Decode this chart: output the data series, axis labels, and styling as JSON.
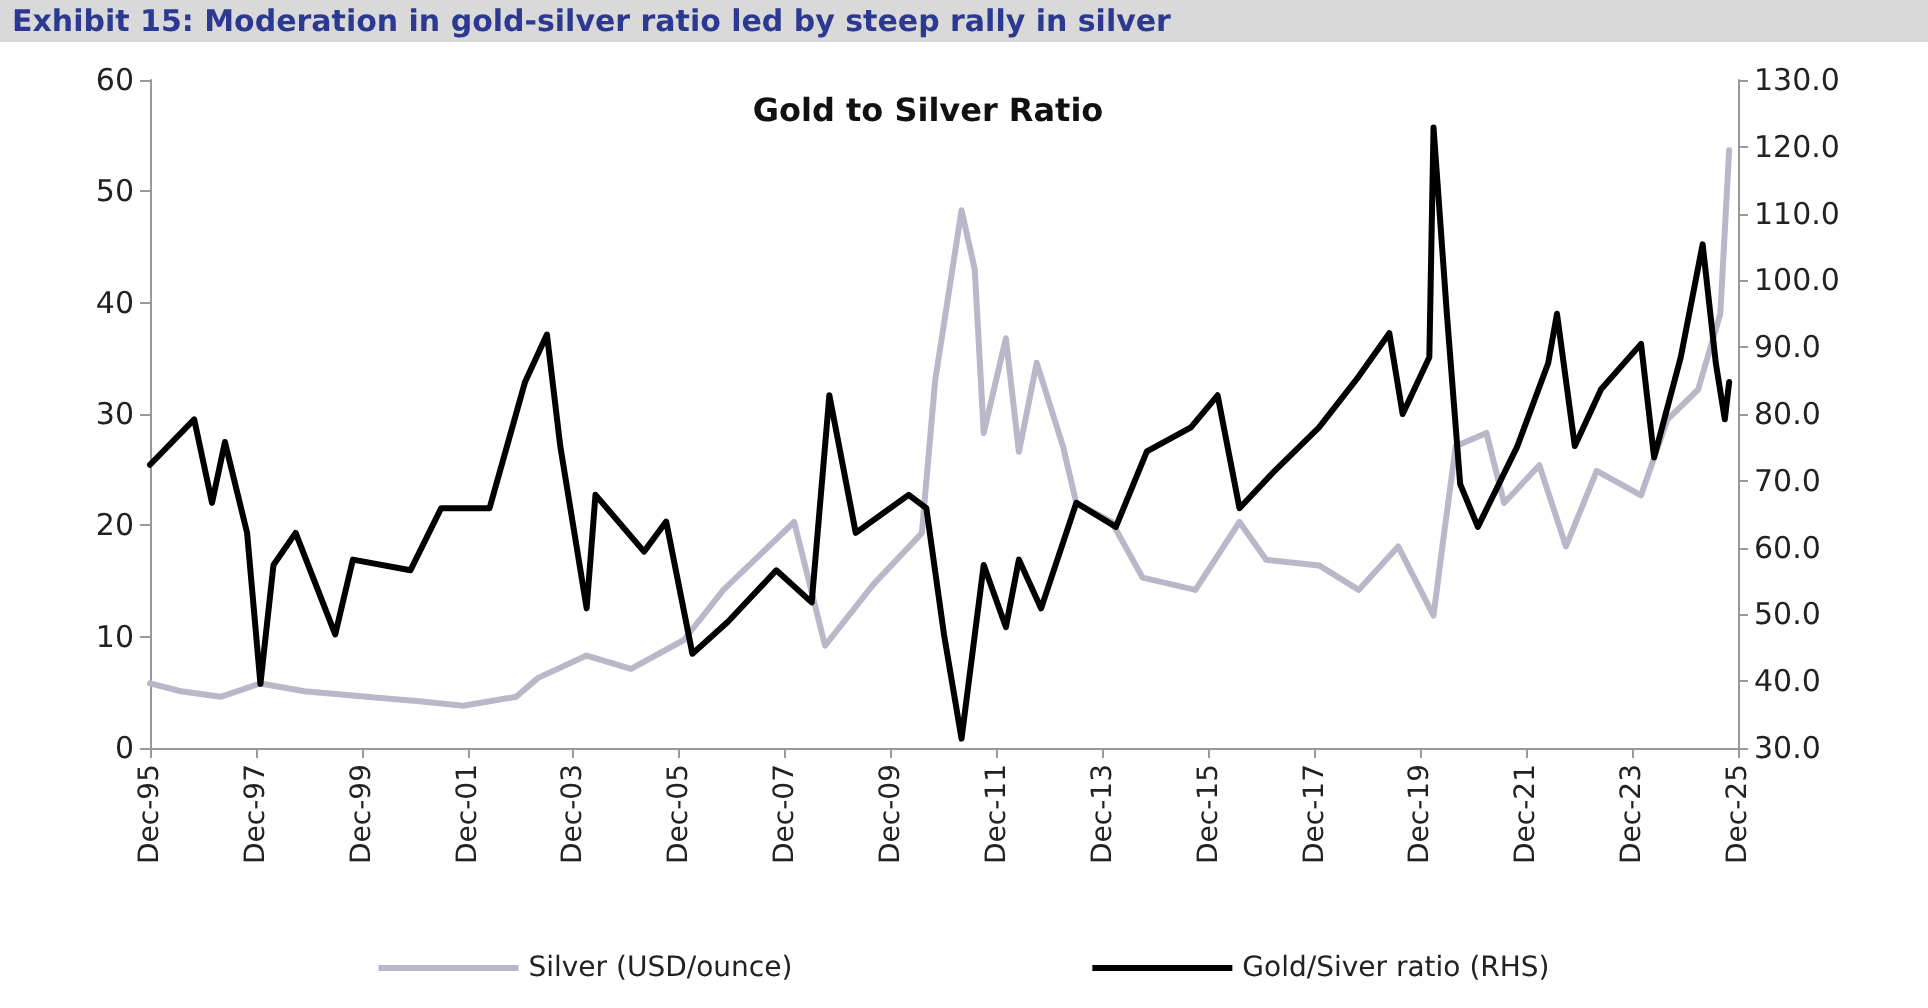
{
  "chart_data": {
    "type": "line",
    "title": "Exhibit 15: Moderation in gold-silver ratio led by steep rally in silver",
    "subtitle": "Gold to Silver Ratio",
    "xlim": [
      "1995-12",
      "2025-12"
    ],
    "xticks": [
      {
        "value": "1995-12",
        "label": "Dec-95"
      },
      {
        "value": "1997-12",
        "label": "Dec-97"
      },
      {
        "value": "1999-12",
        "label": "Dec-99"
      },
      {
        "value": "2001-12",
        "label": "Dec-01"
      },
      {
        "value": "2003-12",
        "label": "Dec-03"
      },
      {
        "value": "2005-12",
        "label": "Dec-05"
      },
      {
        "value": "2007-12",
        "label": "Dec-07"
      },
      {
        "value": "2009-12",
        "label": "Dec-09"
      },
      {
        "value": "2011-12",
        "label": "Dec-11"
      },
      {
        "value": "2013-12",
        "label": "Dec-13"
      },
      {
        "value": "2015-12",
        "label": "Dec-15"
      },
      {
        "value": "2017-12",
        "label": "Dec-17"
      },
      {
        "value": "2019-12",
        "label": "Dec-19"
      },
      {
        "value": "2021-12",
        "label": "Dec-21"
      },
      {
        "value": "2023-12",
        "label": "Dec-23"
      },
      {
        "value": "2025-12",
        "label": "Dec-25"
      }
    ],
    "ylim": [
      0,
      60
    ],
    "yticks": [
      0,
      10,
      20,
      30,
      40,
      50,
      60
    ],
    "y2lim": [
      30,
      130
    ],
    "y2ticks": [
      {
        "value": 30,
        "label": "30.0"
      },
      {
        "value": 40,
        "label": "40.0"
      },
      {
        "value": 50,
        "label": "50.0"
      },
      {
        "value": 60,
        "label": "60.0"
      },
      {
        "value": 70,
        "label": "70.0"
      },
      {
        "value": 80,
        "label": "80.0"
      },
      {
        "value": 90,
        "label": "90.0"
      },
      {
        "value": 100,
        "label": "100.0"
      },
      {
        "value": 110,
        "label": "110.0"
      },
      {
        "value": 120,
        "label": "120.0"
      },
      {
        "value": 130,
        "label": "130.0"
      }
    ],
    "grid": false,
    "legend": "bottom",
    "marker": "none",
    "line_style": "solid",
    "series": [
      {
        "name": "Silver (USD/ounce)",
        "color": "#b9b8c8",
        "x": [
          "1995-12",
          "1996-07",
          "1997-04",
          "1998-01",
          "1998-11",
          "2000-01",
          "2001-01",
          "2001-11",
          "2002-11",
          "2003-04",
          "2004-03",
          "2005-01",
          "2006-01",
          "2006-10",
          "2008-02",
          "2008-09",
          "2009-08",
          "2010-07",
          "2010-10",
          "2011-04",
          "2011-07",
          "2011-09",
          "2012-02",
          "2012-05",
          "2012-09",
          "2013-03",
          "2013-06",
          "2014-02",
          "2014-09",
          "2015-09",
          "2016-07",
          "2017-01",
          "2018-01",
          "2018-10",
          "2019-07",
          "2020-03",
          "2020-05",
          "2020-08",
          "2021-03",
          "2021-07",
          "2022-03",
          "2022-09",
          "2023-04",
          "2024-02",
          "2024-08",
          "2025-03",
          "2025-08",
          "2025-10"
        ],
        "values": [
          5.8,
          5.1,
          4.6,
          5.8,
          5.1,
          4.6,
          4.2,
          3.8,
          4.6,
          6.3,
          8.3,
          7.1,
          9.7,
          14.2,
          20.3,
          9.2,
          14.7,
          19.3,
          33,
          48.3,
          43,
          28.3,
          36.8,
          26.6,
          34.6,
          27.1,
          22,
          20.3,
          15.3,
          14.2,
          20.3,
          16.9,
          16.4,
          14.2,
          18.1,
          11.9,
          18.1,
          27.1,
          28.3,
          22,
          25.4,
          18.1,
          24.9,
          22.7,
          29.5,
          32.2,
          39,
          53.7
        ]
      },
      {
        "name": "Gold/Siver ratio (RHS)",
        "color": "#000000",
        "axis": "y2",
        "x": [
          "1995-12",
          "1996-10",
          "1997-02",
          "1997-05",
          "1997-10",
          "1998-01",
          "1998-04",
          "1998-09",
          "1999-06",
          "1999-10",
          "2000-11",
          "2001-06",
          "2002-05",
          "2003-01",
          "2003-06",
          "2003-09",
          "2004-03",
          "2004-05",
          "2005-04",
          "2005-09",
          "2006-03",
          "2006-11",
          "2007-10",
          "2008-06",
          "2008-10",
          "2009-04",
          "2010-04",
          "2010-08",
          "2010-12",
          "2011-04",
          "2011-09",
          "2012-02",
          "2012-05",
          "2012-10",
          "2013-06",
          "2014-03",
          "2014-10",
          "2015-08",
          "2016-02",
          "2016-07",
          "2017-03",
          "2018-01",
          "2018-10",
          "2019-05",
          "2019-08",
          "2020-02",
          "2020-03",
          "2020-06",
          "2020-09",
          "2021-01",
          "2021-10",
          "2022-05",
          "2022-07",
          "2022-11",
          "2023-05",
          "2024-02",
          "2024-05",
          "2024-11",
          "2025-04",
          "2025-07",
          "2025-09",
          "2025-10"
        ],
        "values": [
          72.4,
          79.2,
          66.7,
          75.8,
          62.2,
          39.6,
          57.4,
          62.2,
          47,
          58.2,
          56.6,
          65.9,
          65.9,
          84.8,
          91.9,
          75.2,
          50.9,
          67.9,
          59.4,
          63.9,
          44.1,
          48.9,
          56.6,
          51.8,
          82.8,
          62.2,
          67.9,
          65.9,
          47,
          31.4,
          57.4,
          48.1,
          58.2,
          50.9,
          66.7,
          63.1,
          74.4,
          78,
          82.8,
          65.9,
          71.5,
          78,
          85.6,
          92.1,
          80,
          88.5,
          122.9,
          95,
          69.5,
          63.1,
          75.2,
          87.6,
          95,
          75.2,
          83.7,
          90.5,
          73.5,
          88.5,
          105.4,
          87.6,
          79.2,
          84.8
        ]
      }
    ]
  }
}
